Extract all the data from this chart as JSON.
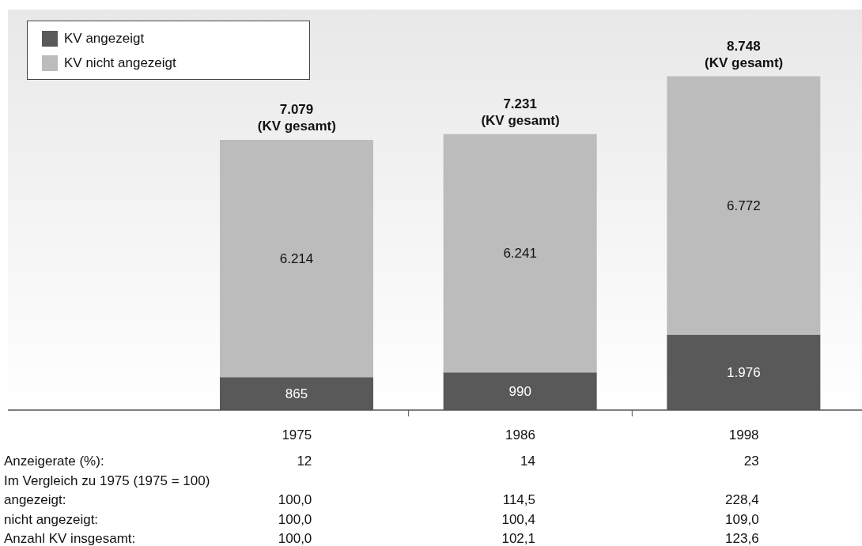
{
  "chart_data": {
    "type": "bar",
    "stacked": true,
    "categories": [
      "1975",
      "1986",
      "1998"
    ],
    "series": [
      {
        "name": "KV angezeigt",
        "color": "#595959",
        "values": [
          865,
          990,
          1976
        ],
        "value_labels": [
          "865",
          "990",
          "1.976"
        ]
      },
      {
        "name": "KV nicht angezeigt",
        "color": "#bcbcbc",
        "values": [
          6214,
          6241,
          6772
        ],
        "value_labels": [
          "6.214",
          "6.241",
          "6.772"
        ]
      }
    ],
    "totals": [
      "7.079",
      "7.231",
      "8.748"
    ],
    "legend": "top left",
    "tick_labels": "x",
    "annotations": [
      {
        "text": "(KV gesamt)",
        "x": "1975",
        "y": 7079
      },
      {
        "text": "(KV gesamt)",
        "x": "1986",
        "y": 7231
      },
      {
        "text": "(KV gesamt)",
        "x": "1998",
        "y": 8748
      },
      "Anzeigerate (%):\t12\t14\t23",
      "Im Vergleich zu 1975 (1975 = 100)",
      "angezeigt:\t100,0\t114,5\t228,4",
      "nicht angezeigt:\t100,0\t100,4\t109,0",
      "Anzahl KV insgesamt:\t100,0\t102,1\t123,6"
    ]
  }
}
